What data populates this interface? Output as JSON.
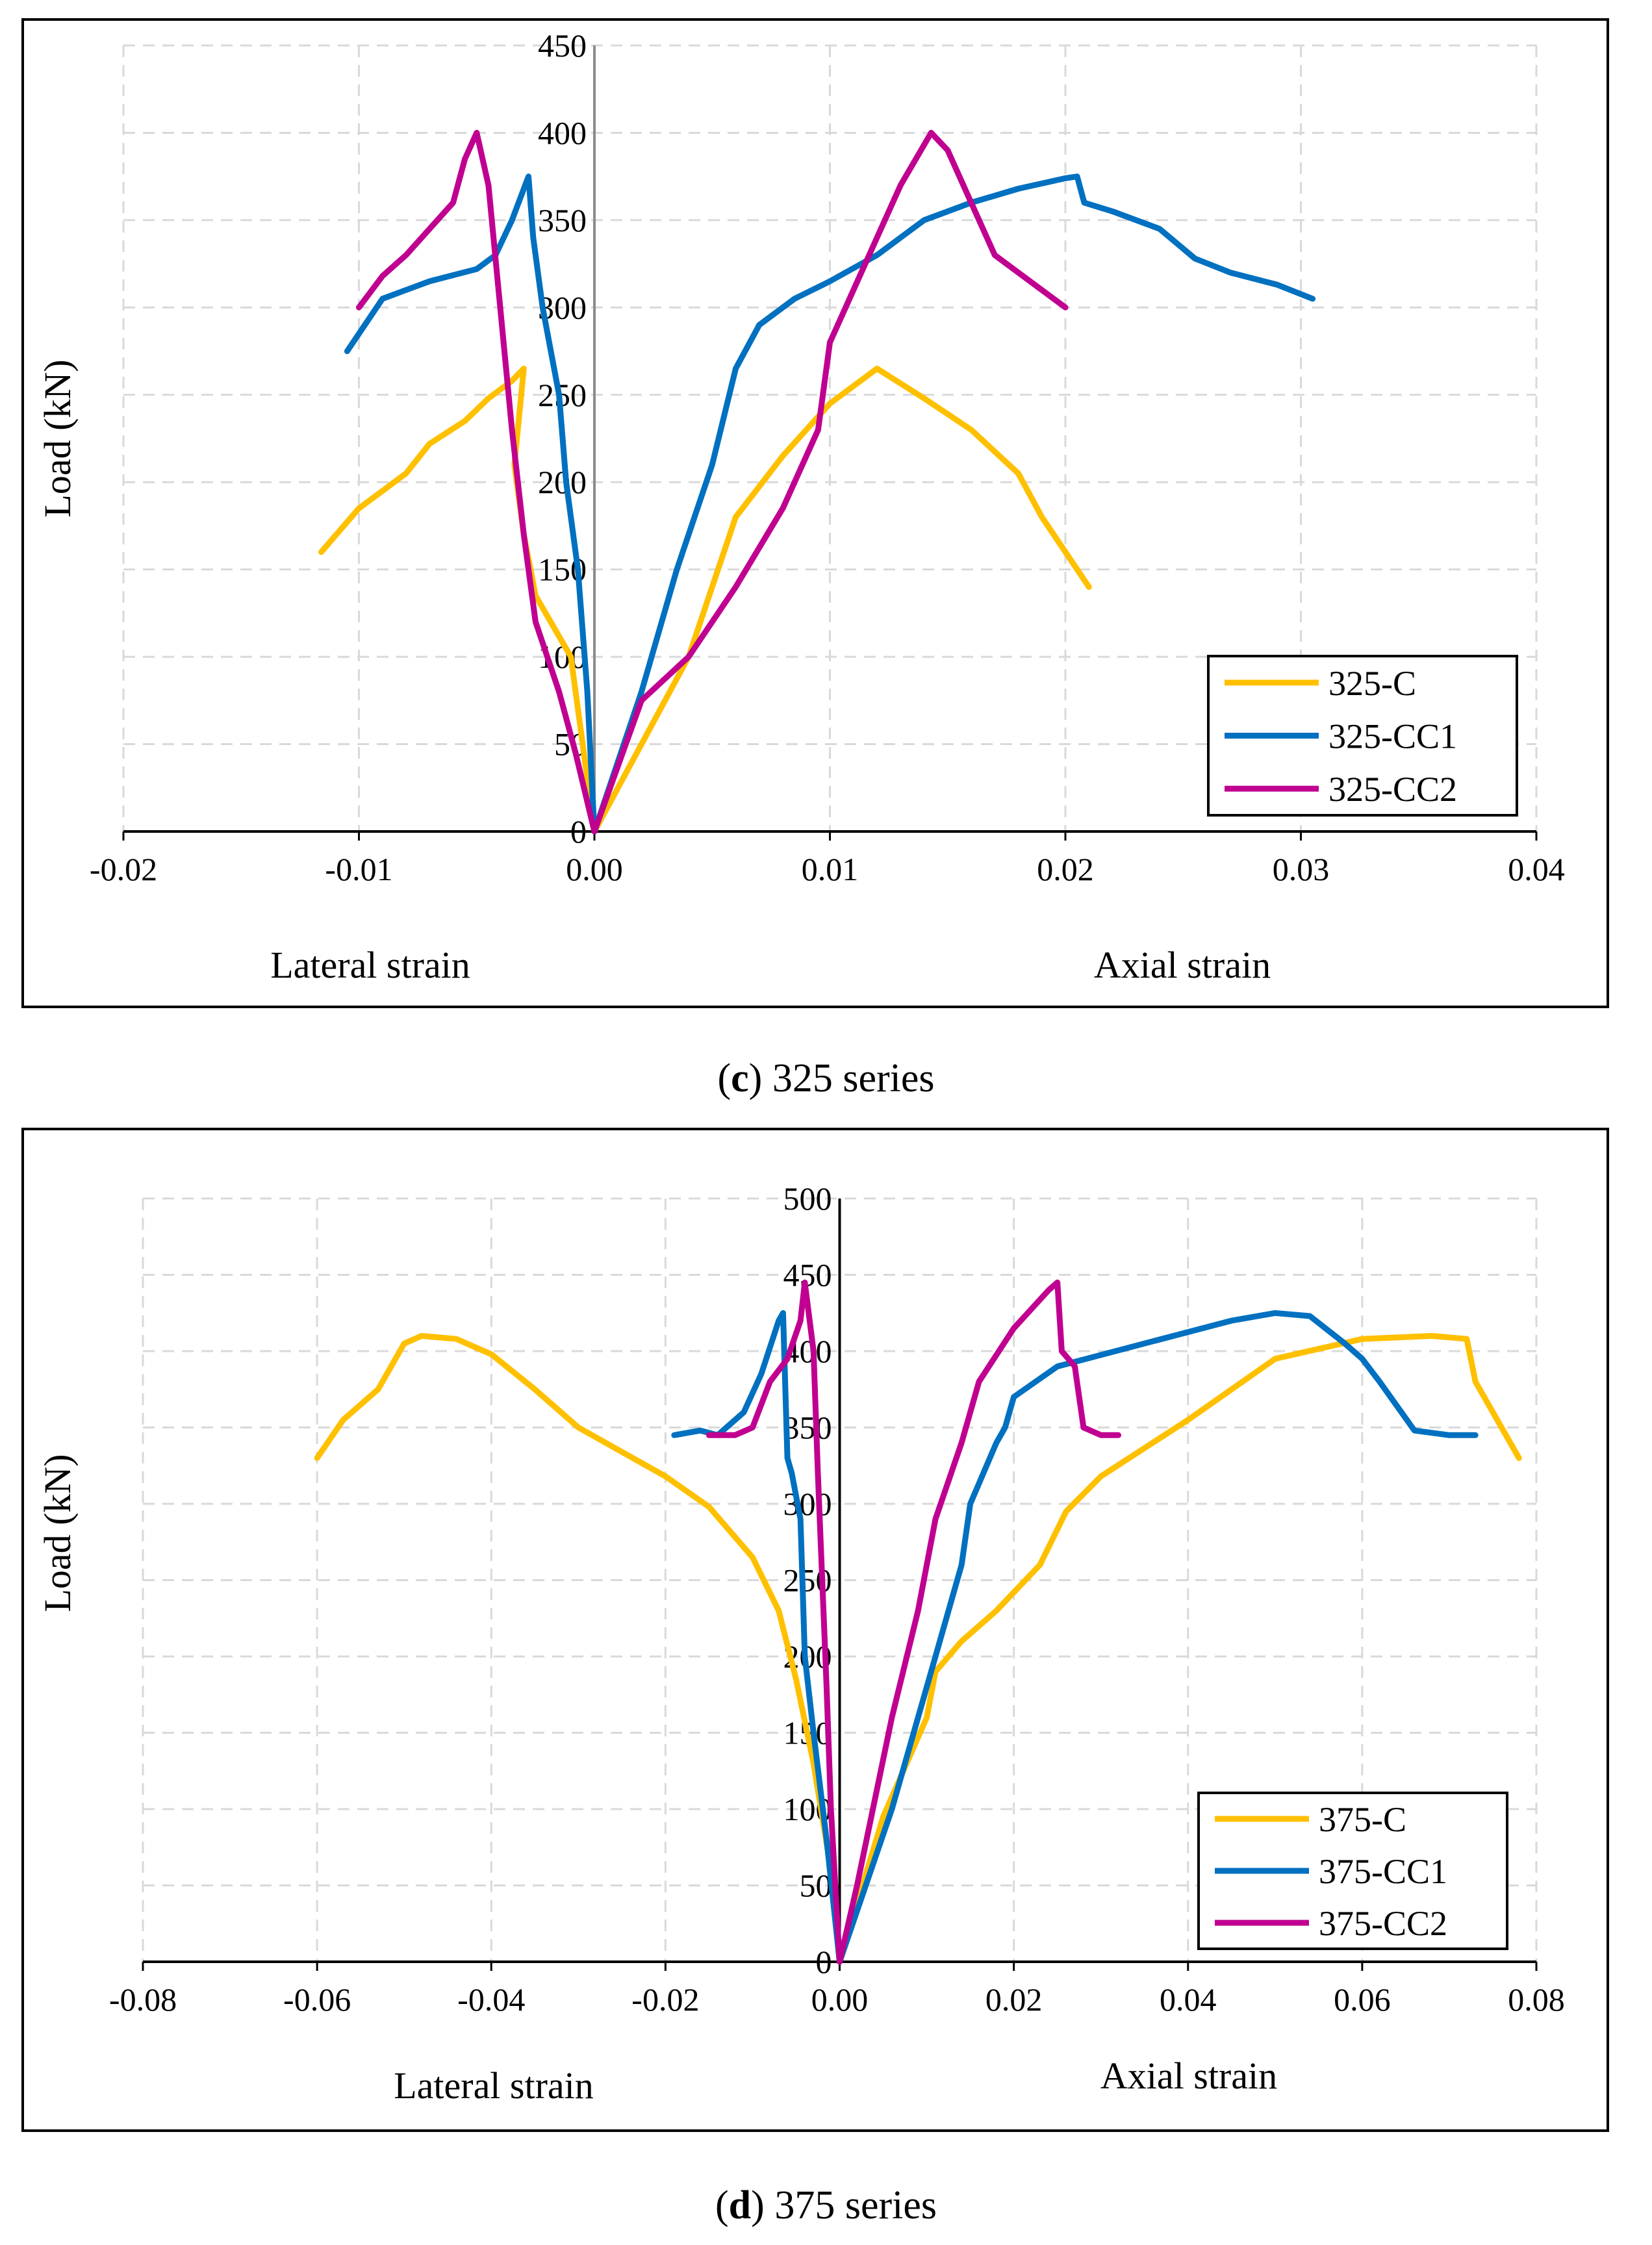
{
  "charts_meta": {
    "grid_color": "#d9d9d9",
    "series_colors": {
      "C": "#ffc000",
      "CC1": "#0070c0",
      "CC2": "#c00090"
    }
  },
  "captions": {
    "c": {
      "letter": "c",
      "text": "325 series"
    },
    "d": {
      "letter": "d",
      "text": "375 series"
    }
  },
  "chart_data": [
    {
      "type": "line",
      "title": "",
      "ylabel": "Load (kN)",
      "xlabel_left": "Lateral strain",
      "xlabel_right": "Axial strain",
      "xlim": [
        -0.02,
        0.04
      ],
      "ylim": [
        0,
        450
      ],
      "xticks": [
        -0.02,
        -0.01,
        0.0,
        0.01,
        0.02,
        0.03,
        0.04
      ],
      "xtick_labels": [
        "-0.02",
        "-0.01",
        "0.00",
        "0.01",
        "0.02",
        "0.03",
        "0.04"
      ],
      "yticks": [
        0,
        50,
        100,
        150,
        200,
        250,
        300,
        350,
        400,
        450
      ],
      "ytick_labels": [
        "0",
        "50",
        "100",
        "150",
        "200",
        "250",
        "300",
        "350",
        "400",
        "450"
      ],
      "grid": true,
      "legend_position": "bottom-right",
      "series": [
        {
          "name": "325-C",
          "color": "#ffc000",
          "points": [
            [
              -0.0116,
              160
            ],
            [
              -0.01,
              185
            ],
            [
              -0.008,
              205
            ],
            [
              -0.007,
              222
            ],
            [
              -0.0055,
              235
            ],
            [
              -0.0045,
              248
            ],
            [
              -0.0035,
              258
            ],
            [
              -0.003,
              265
            ],
            [
              -0.0034,
              210
            ],
            [
              -0.003,
              170
            ],
            [
              -0.0025,
              135
            ],
            [
              -0.001,
              100
            ],
            [
              0.0,
              0
            ],
            [
              0.002,
              50
            ],
            [
              0.004,
              100
            ],
            [
              0.006,
              180
            ],
            [
              0.008,
              215
            ],
            [
              0.01,
              245
            ],
            [
              0.012,
              265
            ],
            [
              0.014,
              248
            ],
            [
              0.016,
              230
            ],
            [
              0.018,
              205
            ],
            [
              0.019,
              180
            ],
            [
              0.021,
              140
            ]
          ]
        },
        {
          "name": "325-CC1",
          "color": "#0070c0",
          "points": [
            [
              -0.0105,
              275
            ],
            [
              -0.009,
              305
            ],
            [
              -0.007,
              315
            ],
            [
              -0.005,
              322
            ],
            [
              -0.0042,
              330
            ],
            [
              -0.0035,
              350
            ],
            [
              -0.0028,
              375
            ],
            [
              -0.0026,
              340
            ],
            [
              -0.0022,
              300
            ],
            [
              -0.0015,
              250
            ],
            [
              -0.0012,
              200
            ],
            [
              -0.0007,
              150
            ],
            [
              -0.0003,
              80
            ],
            [
              0.0,
              0
            ],
            [
              0.002,
              80
            ],
            [
              0.0035,
              150
            ],
            [
              0.005,
              210
            ],
            [
              0.006,
              265
            ],
            [
              0.007,
              290
            ],
            [
              0.0085,
              305
            ],
            [
              0.01,
              315
            ],
            [
              0.012,
              330
            ],
            [
              0.014,
              350
            ],
            [
              0.016,
              360
            ],
            [
              0.018,
              368
            ],
            [
              0.02,
              374
            ],
            [
              0.0205,
              375
            ],
            [
              0.0208,
              360
            ],
            [
              0.022,
              355
            ],
            [
              0.024,
              345
            ],
            [
              0.0255,
              328
            ],
            [
              0.027,
              320
            ],
            [
              0.029,
              313
            ],
            [
              0.0305,
              305
            ]
          ]
        },
        {
          "name": "325-CC2",
          "color": "#c00090",
          "points": [
            [
              -0.01,
              300
            ],
            [
              -0.009,
              318
            ],
            [
              -0.008,
              330
            ],
            [
              -0.007,
              345
            ],
            [
              -0.006,
              360
            ],
            [
              -0.0055,
              385
            ],
            [
              -0.005,
              400
            ],
            [
              -0.0045,
              370
            ],
            [
              -0.004,
              300
            ],
            [
              -0.0035,
              230
            ],
            [
              -0.003,
              170
            ],
            [
              -0.0025,
              120
            ],
            [
              -0.0015,
              80
            ],
            [
              -0.0008,
              45
            ],
            [
              0.0,
              0
            ],
            [
              0.002,
              75
            ],
            [
              0.004,
              100
            ],
            [
              0.006,
              140
            ],
            [
              0.008,
              185
            ],
            [
              0.0095,
              230
            ],
            [
              0.01,
              280
            ],
            [
              0.011,
              310
            ],
            [
              0.012,
              340
            ],
            [
              0.013,
              370
            ],
            [
              0.0143,
              400
            ],
            [
              0.015,
              390
            ],
            [
              0.016,
              360
            ],
            [
              0.017,
              330
            ],
            [
              0.0185,
              315
            ],
            [
              0.02,
              300
            ]
          ]
        }
      ]
    },
    {
      "type": "line",
      "title": "",
      "ylabel": "Load (kN)",
      "xlabel_left": "Lateral strain",
      "xlabel_right": "Axial strain",
      "xlim": [
        -0.08,
        0.08
      ],
      "ylim": [
        0,
        500
      ],
      "xticks": [
        -0.08,
        -0.06,
        -0.04,
        -0.02,
        0.0,
        0.02,
        0.04,
        0.06,
        0.08
      ],
      "xtick_labels": [
        "-0.08",
        "-0.06",
        "-0.04",
        "-0.02",
        "0.00",
        "0.02",
        "0.04",
        "0.06",
        "0.08"
      ],
      "yticks": [
        0,
        50,
        100,
        150,
        200,
        250,
        300,
        350,
        400,
        450,
        500
      ],
      "ytick_labels": [
        "0",
        "50",
        "100",
        "150",
        "200",
        "250",
        "300",
        "350",
        "400",
        "450",
        "500"
      ],
      "grid": true,
      "legend_position": "bottom-right",
      "series": [
        {
          "name": "375-C",
          "color": "#ffc000",
          "points": [
            [
              -0.06,
              330
            ],
            [
              -0.057,
              355
            ],
            [
              -0.053,
              375
            ],
            [
              -0.05,
              405
            ],
            [
              -0.048,
              410
            ],
            [
              -0.044,
              408
            ],
            [
              -0.04,
              398
            ],
            [
              -0.035,
              375
            ],
            [
              -0.03,
              350
            ],
            [
              -0.02,
              318
            ],
            [
              -0.015,
              298
            ],
            [
              -0.01,
              265
            ],
            [
              -0.007,
              230
            ],
            [
              -0.005,
              185
            ],
            [
              -0.003,
              130
            ],
            [
              -0.001,
              60
            ],
            [
              0.0,
              0
            ],
            [
              0.005,
              95
            ],
            [
              0.01,
              160
            ],
            [
              0.011,
              190
            ],
            [
              0.014,
              210
            ],
            [
              0.018,
              230
            ],
            [
              0.023,
              260
            ],
            [
              0.026,
              295
            ],
            [
              0.03,
              318
            ],
            [
              0.04,
              355
            ],
            [
              0.05,
              395
            ],
            [
              0.06,
              408
            ],
            [
              0.068,
              410
            ],
            [
              0.072,
              408
            ],
            [
              0.073,
              380
            ],
            [
              0.076,
              350
            ],
            [
              0.078,
              330
            ]
          ]
        },
        {
          "name": "375-CC1",
          "color": "#0070c0",
          "points": [
            [
              -0.019,
              345
            ],
            [
              -0.016,
              348
            ],
            [
              -0.014,
              345
            ],
            [
              -0.011,
              360
            ],
            [
              -0.009,
              385
            ],
            [
              -0.007,
              420
            ],
            [
              -0.0065,
              425
            ],
            [
              -0.006,
              330
            ],
            [
              -0.0055,
              320
            ],
            [
              -0.0045,
              290
            ],
            [
              -0.004,
              200
            ],
            [
              -0.003,
              150
            ],
            [
              -0.0015,
              80
            ],
            [
              0.0,
              0
            ],
            [
              0.006,
              100
            ],
            [
              0.01,
              180
            ],
            [
              0.012,
              220
            ],
            [
              0.014,
              260
            ],
            [
              0.015,
              300
            ],
            [
              0.018,
              340
            ],
            [
              0.019,
              350
            ],
            [
              0.02,
              370
            ],
            [
              0.025,
              390
            ],
            [
              0.035,
              405
            ],
            [
              0.045,
              420
            ],
            [
              0.05,
              425
            ],
            [
              0.054,
              423
            ],
            [
              0.058,
              405
            ],
            [
              0.06,
              395
            ],
            [
              0.062,
              380
            ],
            [
              0.066,
              348
            ],
            [
              0.07,
              345
            ],
            [
              0.073,
              345
            ]
          ]
        },
        {
          "name": "375-CC2",
          "color": "#c00090",
          "points": [
            [
              -0.015,
              345
            ],
            [
              -0.012,
              345
            ],
            [
              -0.01,
              350
            ],
            [
              -0.008,
              380
            ],
            [
              -0.006,
              395
            ],
            [
              -0.0045,
              420
            ],
            [
              -0.004,
              445
            ],
            [
              -0.003,
              400
            ],
            [
              -0.0025,
              320
            ],
            [
              -0.002,
              250
            ],
            [
              -0.0015,
              180
            ],
            [
              -0.001,
              100
            ],
            [
              0.0,
              0
            ],
            [
              0.002,
              50
            ],
            [
              0.006,
              160
            ],
            [
              0.009,
              230
            ],
            [
              0.011,
              290
            ],
            [
              0.014,
              340
            ],
            [
              0.016,
              380
            ],
            [
              0.02,
              415
            ],
            [
              0.024,
              440
            ],
            [
              0.025,
              445
            ],
            [
              0.0255,
              400
            ],
            [
              0.027,
              390
            ],
            [
              0.028,
              350
            ],
            [
              0.03,
              345
            ],
            [
              0.032,
              345
            ]
          ]
        }
      ]
    }
  ]
}
